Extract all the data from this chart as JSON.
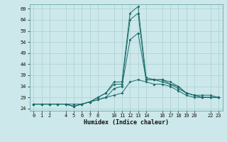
{
  "xlabel": "Humidex (Indice chaleur)",
  "background_color": "#cce8ea",
  "grid_color": "#aacfd2",
  "line_color": "#1a6b6b",
  "xlim": [
    -0.5,
    23.5
  ],
  "ylim": [
    23,
    71
  ],
  "yticks": [
    24,
    29,
    34,
    39,
    44,
    49,
    54,
    59,
    64,
    69
  ],
  "xticks": [
    0,
    1,
    2,
    4,
    5,
    6,
    7,
    8,
    10,
    11,
    12,
    13,
    14,
    16,
    17,
    18,
    19,
    20,
    22,
    23
  ],
  "series": [
    [
      26,
      26,
      26,
      26,
      26,
      25,
      26,
      27,
      29,
      31,
      36,
      36,
      67,
      70,
      38,
      37,
      37,
      36,
      34,
      31,
      30,
      30,
      30,
      29
    ],
    [
      26,
      26,
      26,
      26,
      26,
      26,
      26,
      27,
      29,
      31,
      35,
      35,
      64,
      67,
      37,
      37,
      37,
      35,
      34,
      31,
      30,
      29,
      29,
      29
    ],
    [
      26,
      26,
      26,
      26,
      26,
      25,
      26,
      27,
      28,
      29,
      33,
      34,
      55,
      58,
      37,
      37,
      36,
      35,
      33,
      31,
      30,
      29,
      29,
      29
    ],
    [
      26,
      26,
      26,
      26,
      26,
      25,
      26,
      27,
      28,
      29,
      30,
      31,
      36,
      37,
      36,
      35,
      35,
      34,
      32,
      30,
      29,
      29,
      29,
      29
    ]
  ]
}
